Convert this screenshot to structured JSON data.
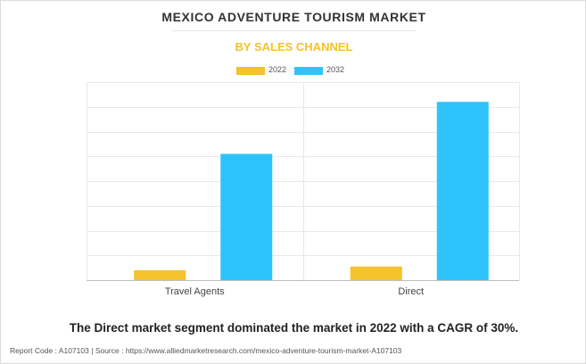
{
  "title": "MEXICO ADVENTURE TOURISM MARKET",
  "subtitle": "BY SALES CHANNEL",
  "headline": "The Direct market segment dominated the market in 2022 with a CAGR of 30%.",
  "footer": {
    "report_code": "Report Code : A107103",
    "separator": "|",
    "source": "Source : https://www.alliedmarketresearch.com/mexico-adventure-tourism-market-A107103"
  },
  "colors": {
    "2022": "#f4c22b",
    "2032": "#2ec4fb",
    "title": "#333333",
    "subtitle": "#f4c22b"
  },
  "chart_data": {
    "type": "bar",
    "title": "MEXICO ADVENTURE TOURISM MARKET",
    "subtitle": "BY SALES CHANNEL",
    "xlabel": "",
    "ylabel": "",
    "categories": [
      "Travel Agents",
      "Direct"
    ],
    "series": [
      {
        "name": "2022",
        "values": [
          0.4,
          0.55
        ]
      },
      {
        "name": "2032",
        "values": [
          5.1,
          7.2
        ]
      }
    ],
    "ylim": [
      0,
      8
    ],
    "y_ticks_labeled": false,
    "grid": true,
    "legend": "top-center"
  }
}
